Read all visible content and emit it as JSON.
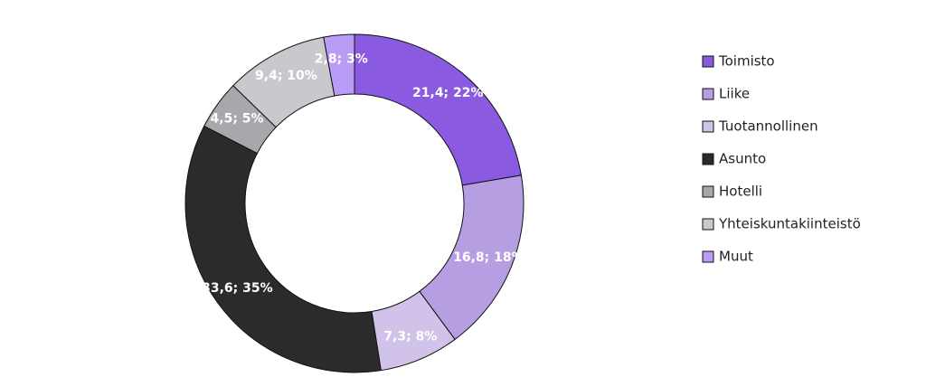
{
  "chart_data": {
    "type": "donut",
    "categories": [
      "Toimisto",
      "Liike",
      "Tuotannollinen",
      "Asunto",
      "Hotelli",
      "Yhteiskuntakiinteistö",
      "Muut"
    ],
    "values": [
      21.4,
      16.8,
      7.3,
      33.6,
      4.5,
      9.4,
      2.8
    ],
    "value_labels": [
      "21,4; 22%",
      "16,8; 18%",
      "7,3; 8%",
      "33,6; 35%",
      "4,5; 5%",
      "9,4; 10%",
      "2,8; 3%"
    ],
    "colors": [
      "#8a5ae0",
      "#b59fe2",
      "#d0c2e8",
      "#2b2b2b",
      "#a8a8ac",
      "#c9c9cd",
      "#b99cf6"
    ],
    "legend": "right"
  }
}
